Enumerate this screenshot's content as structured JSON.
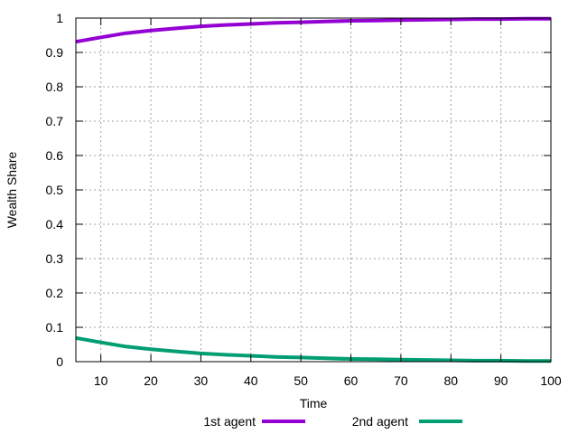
{
  "chart_data": {
    "type": "line",
    "title": "",
    "xlabel": "Time",
    "ylabel": "Wealth Share",
    "xlim": [
      5,
      100
    ],
    "ylim": [
      0,
      1
    ],
    "xticks": [
      10,
      20,
      30,
      40,
      50,
      60,
      70,
      80,
      90,
      100
    ],
    "yticks": [
      0,
      0.1,
      0.2,
      0.3,
      0.4,
      0.5,
      0.6,
      0.7,
      0.8,
      0.9,
      1
    ],
    "xtick_labels": [
      "10",
      "20",
      "30",
      "40",
      "50",
      "60",
      "70",
      "80",
      "90",
      "100"
    ],
    "ytick_labels": [
      "0",
      "0.1",
      "0.2",
      "0.3",
      "0.4",
      "0.5",
      "0.6",
      "0.7",
      "0.8",
      "0.9",
      "1"
    ],
    "grid": true,
    "legend_position": "bottom",
    "x": [
      5,
      10,
      15,
      20,
      25,
      30,
      35,
      40,
      45,
      50,
      55,
      60,
      65,
      70,
      75,
      80,
      85,
      90,
      95,
      100
    ],
    "series": [
      {
        "name": "1st agent",
        "color": "#9400d3",
        "values": [
          0.931,
          0.944,
          0.956,
          0.964,
          0.97,
          0.976,
          0.98,
          0.983,
          0.986,
          0.988,
          0.99,
          0.992,
          0.993,
          0.994,
          0.995,
          0.996,
          0.997,
          0.997,
          0.998,
          0.998
        ]
      },
      {
        "name": "2nd agent",
        "color": "#009e73",
        "values": [
          0.069,
          0.056,
          0.044,
          0.036,
          0.03,
          0.024,
          0.02,
          0.017,
          0.014,
          0.012,
          0.01,
          0.008,
          0.007,
          0.006,
          0.005,
          0.004,
          0.003,
          0.003,
          0.002,
          0.002
        ]
      }
    ]
  }
}
